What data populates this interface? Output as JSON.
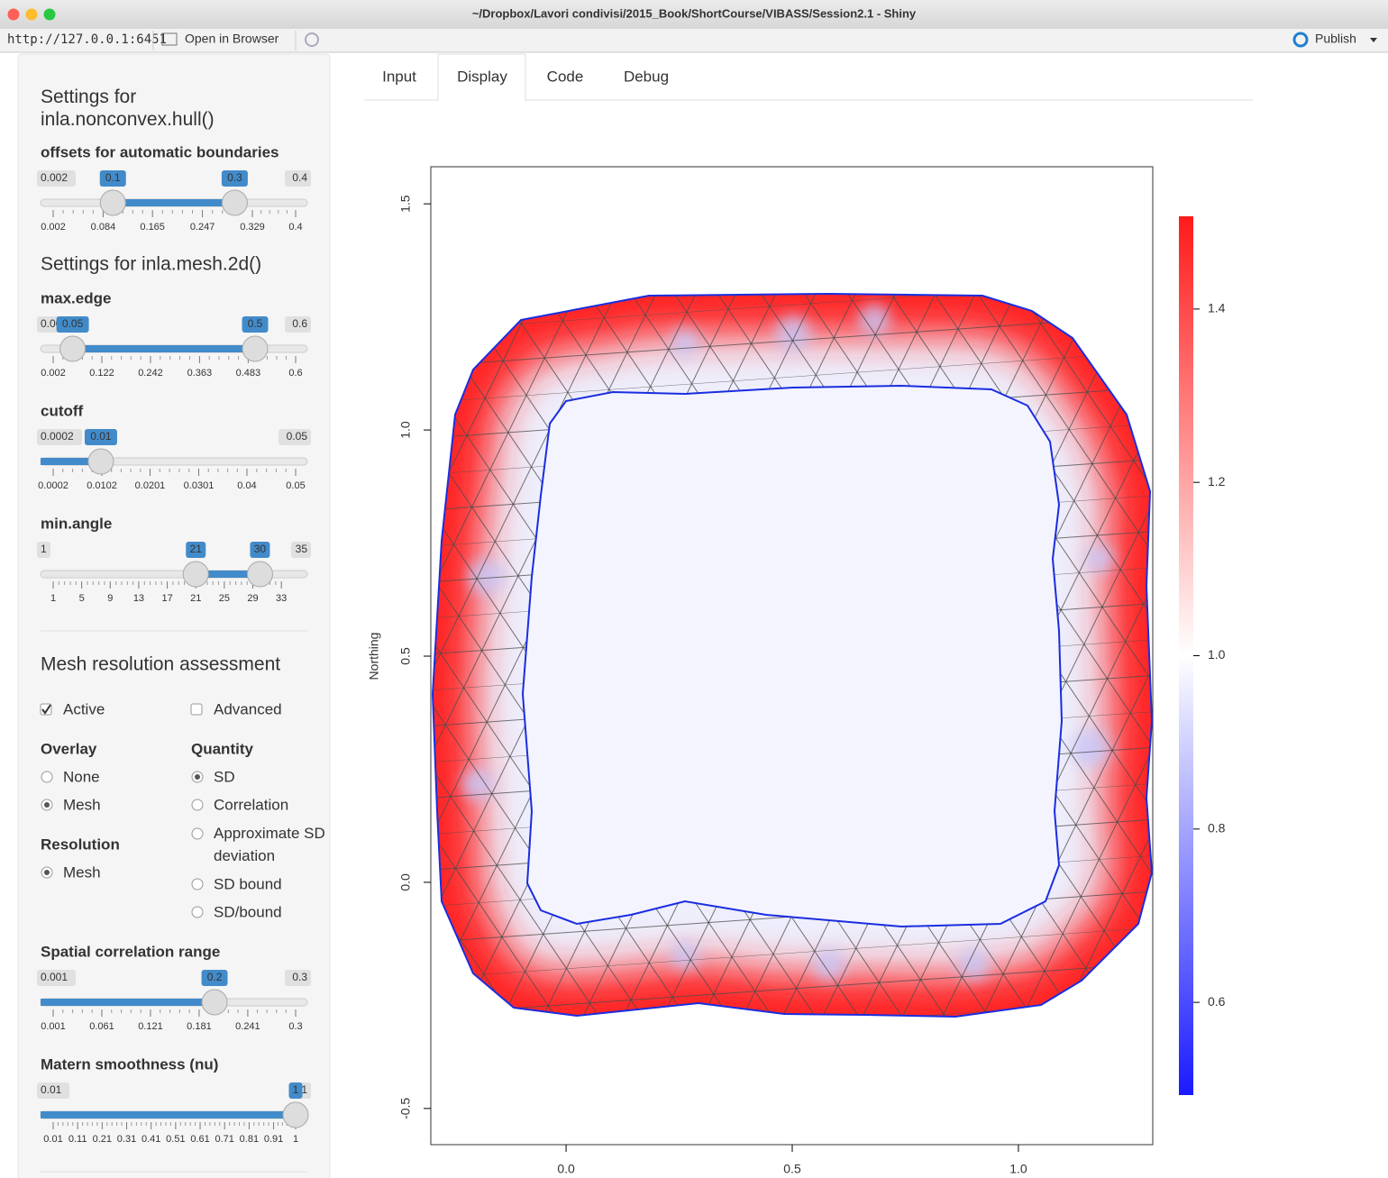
{
  "window": {
    "title": "~/Dropbox/Lavori condivisi/2015_Book/ShortCourse/VIBASS/Session2.1 - Shiny",
    "url": "http://127.0.0.1:6451",
    "open_in_browser": "Open in Browser",
    "publish": "Publish"
  },
  "sidebar": {
    "hull_heading": "Settings for inla.nonconvex.hull()",
    "mesh_heading": "Settings for inla.mesh.2d()",
    "sliders": [
      {
        "label": "offsets for automatic boundaries",
        "min": 0.002,
        "max": 0.4,
        "from": 0.1,
        "to": 0.3,
        "ticks": [
          0.002,
          0.084,
          0.165,
          0.247,
          0.329,
          0.4
        ]
      },
      {
        "label": "max.edge",
        "min": 0.002,
        "max": 0.6,
        "from": 0.05,
        "to": 0.5,
        "ticks": [
          0.002,
          0.122,
          0.242,
          0.363,
          0.483,
          0.6
        ]
      },
      {
        "label": "cutoff",
        "min": 0.0002,
        "max": 0.05,
        "value": 0.01,
        "ticks": [
          0.0002,
          0.0102,
          0.0201,
          0.0301,
          0.04,
          0.05
        ]
      },
      {
        "label": "min.angle",
        "min": 1,
        "max": 35,
        "from": 21,
        "to": 30,
        "ticks": [
          1,
          5,
          9,
          13,
          17,
          21,
          25,
          29,
          33
        ]
      },
      {
        "label": "Spatial correlation range",
        "min": 0.001,
        "max": 0.3,
        "value": 0.2,
        "ticks": [
          0.001,
          0.061,
          0.121,
          0.181,
          0.241,
          0.3
        ]
      },
      {
        "label": "Matern smoothness (nu)",
        "min": 0.01,
        "max": 1,
        "value": 1,
        "ticks": [
          0.01,
          0.11,
          0.21,
          0.31,
          0.41,
          0.51,
          0.61,
          0.71,
          0.81,
          0.91,
          1
        ]
      }
    ],
    "assessment": {
      "heading": "Mesh resolution assessment",
      "checkboxes": [
        {
          "label": "Active",
          "checked": true
        },
        {
          "label": "Advanced",
          "checked": false
        }
      ],
      "overlay": {
        "title": "Overlay",
        "options": [
          "None",
          "Mesh"
        ],
        "selected": 1
      },
      "quantity": {
        "title": "Quantity",
        "options": [
          "SD",
          "Correlation",
          "Approximate SD deviation",
          "SD bound",
          "SD/bound"
        ],
        "selected": 0
      },
      "resolution": {
        "title": "Resolution",
        "options": [
          "Mesh"
        ],
        "selected": 0
      }
    }
  },
  "tabs": {
    "items": [
      "Input",
      "Display",
      "Code",
      "Debug"
    ],
    "active": 1
  },
  "plot": {
    "ylabel": "Northing",
    "xlim": [
      -0.299,
      1.297
    ],
    "ylim": [
      -0.58,
      1.582
    ],
    "xticks": [
      {
        "value": 0,
        "label": "0.0"
      },
      0.5,
      {
        "value": 1,
        "label": "1.0"
      }
    ],
    "yticks": [
      -0.5,
      {
        "value": 0,
        "label": "0.0"
      },
      0.5,
      {
        "value": 1,
        "label": "1.0"
      },
      1.5
    ],
    "colorbar": {
      "lim": [
        0.493,
        1.507
      ],
      "ticks": [
        0.6,
        0.8,
        {
          "value": 1,
          "label": "1.0"
        },
        1.2,
        1.4
      ]
    }
  }
}
